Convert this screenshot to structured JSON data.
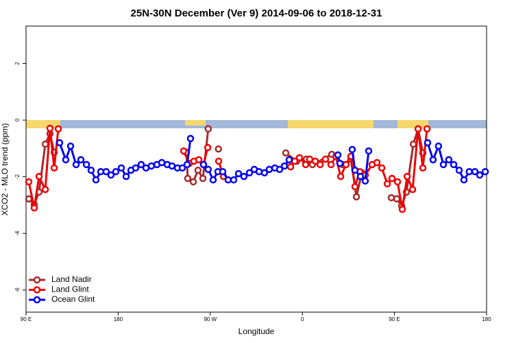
{
  "chart_data": {
    "type": "line",
    "title": "25N-30N December (Ver 9)   2014-09-06 to 2018-12-31",
    "x_label": "Longitude",
    "y_label": "XCO2 - MLO trend (ppm)",
    "xlim": [
      90,
      540
    ],
    "xticks": [
      {
        "value": 90,
        "label": "90 E"
      },
      180,
      {
        "value": 270,
        "label": "90 W"
      },
      {
        "value": 360,
        "label": "0"
      },
      {
        "value": 450,
        "label": "90 E"
      },
      {
        "value": 540,
        "label": "180"
      }
    ],
    "ylim": [
      -6.78,
      3.32
    ],
    "yticks": [
      -6,
      -4,
      -2,
      0,
      2
    ],
    "legend": "bottom-left",
    "series": [
      {
        "name": "Land Nadir",
        "color": "#a52a2a",
        "x": [
          92.7,
          98,
          102.7,
          108.8,
          113.4,
          117.5,
          null,
          246.7,
          248,
          253.4,
          258,
          262.8,
          268,
          null,
          278,
          null,
          343.8,
          354.5,
          363.9,
          369.9,
          388.7,
          399.4,
          407.4,
          412.8,
          418.1,
          null,
          446.9,
          452.3,
          457,
          461.7,
          468.4,
          473.1,
          477.7
        ],
        "values": [
          -2.78,
          -2.98,
          -2.54,
          -0.85,
          -0.48,
          -1.14,
          null,
          -1.14,
          -2.06,
          -2.18,
          -1.77,
          -2.06,
          -0.31,
          null,
          -1.02,
          null,
          -1.16,
          -1.45,
          -1.38,
          -1.57,
          -1.21,
          -1.57,
          -1.38,
          -2.71,
          -1.86,
          null,
          -2.74,
          -2.78,
          -3.03,
          -2.54,
          -0.85,
          -0.31,
          -1.16
        ]
      },
      {
        "name": "Land Glint",
        "color": "#ee0000",
        "x": [
          92.7,
          98,
          102.7,
          108.8,
          113.4,
          117.5,
          121.5,
          null,
          244,
          249.4,
          254,
          258.8,
          263.4,
          267.5,
          null,
          278.2,
          282.9,
          null,
          348.5,
          352.5,
          357.2,
          363.2,
          367.2,
          372.6,
          377.3,
          382.6,
          388,
          392.7,
          397.4,
          402.7,
          407.4,
          411.4,
          416.1,
          421.5,
          428.2,
          432.9,
          437.6,
          443,
          447.6,
          453,
          457.6,
          462.4,
          467.7,
          473.1,
          477.7,
          481.8
        ],
        "values": [
          -2.18,
          -3.1,
          -1.99,
          -2.45,
          -0.29,
          -1.69,
          -0.31,
          null,
          -1.09,
          -1.53,
          -1.45,
          -1.4,
          -1.57,
          -0.97,
          null,
          -1.45,
          -1.99,
          null,
          -1.65,
          -1.45,
          -1.33,
          -1.57,
          -1.38,
          -1.45,
          -1.57,
          -1.38,
          -1.57,
          -1.28,
          -1.99,
          -1.57,
          -1.28,
          -2.35,
          -1.82,
          -1.94,
          -1.57,
          -1.5,
          -1.69,
          -2.25,
          -2.06,
          -2.18,
          -3.15,
          -1.99,
          -2.45,
          -0.31,
          -1.69,
          -0.31
        ]
      },
      {
        "name": "Ocean Glint",
        "color": "#0000ee",
        "x": [
          122.8,
          128.8,
          133.5,
          138.9,
          143.6,
          149,
          153.6,
          158.3,
          163,
          168.3,
          173,
          177.7,
          183.1,
          187.8,
          192.5,
          197.1,
          202.5,
          207.2,
          212.5,
          217.9,
          222.6,
          228,
          232.6,
          238,
          242.7,
          247.4,
          250.7,
          null,
          263.4,
          268,
          272.8,
          277.5,
          282.2,
          287.5,
          292.9,
          297.6,
          302.9,
          308.3,
          313,
          317.7,
          323,
          327.7,
          333.1,
          337.8,
          342.5,
          347.1,
          null,
          394.7,
          396.7,
          null,
          408.7,
          411.4,
          416.7,
          421.4,
          424.8,
          null,
          482.4,
          487.7,
          493,
          497.8,
          503.1,
          507.9,
          513.2,
          517.9,
          523.1,
          528.6,
          533.3,
          538.7
        ],
        "values": [
          -0.8,
          -1.4,
          -0.92,
          -1.57,
          -1.4,
          -1.57,
          -1.77,
          -2.11,
          -1.82,
          -1.82,
          -1.94,
          -1.82,
          -1.69,
          -1.99,
          -1.77,
          -1.69,
          -1.57,
          -1.69,
          -1.62,
          -1.57,
          -1.5,
          -1.57,
          -1.62,
          -1.69,
          -1.69,
          -1.57,
          -0.65,
          null,
          -1.57,
          -1.74,
          -2.11,
          -1.82,
          -1.82,
          -2.11,
          -2.11,
          -1.89,
          -1.99,
          -1.86,
          -1.74,
          -1.82,
          -1.86,
          -1.74,
          -1.69,
          -1.74,
          -1.62,
          -1.4,
          null,
          -1.23,
          -1.53,
          null,
          -1.04,
          -1.77,
          -1.99,
          -2.15,
          -1.09,
          null,
          -0.8,
          -1.4,
          -0.92,
          -1.57,
          -1.4,
          -1.57,
          -1.77,
          -2.11,
          -1.82,
          -1.82,
          -1.94,
          -1.82
        ]
      }
    ]
  }
}
